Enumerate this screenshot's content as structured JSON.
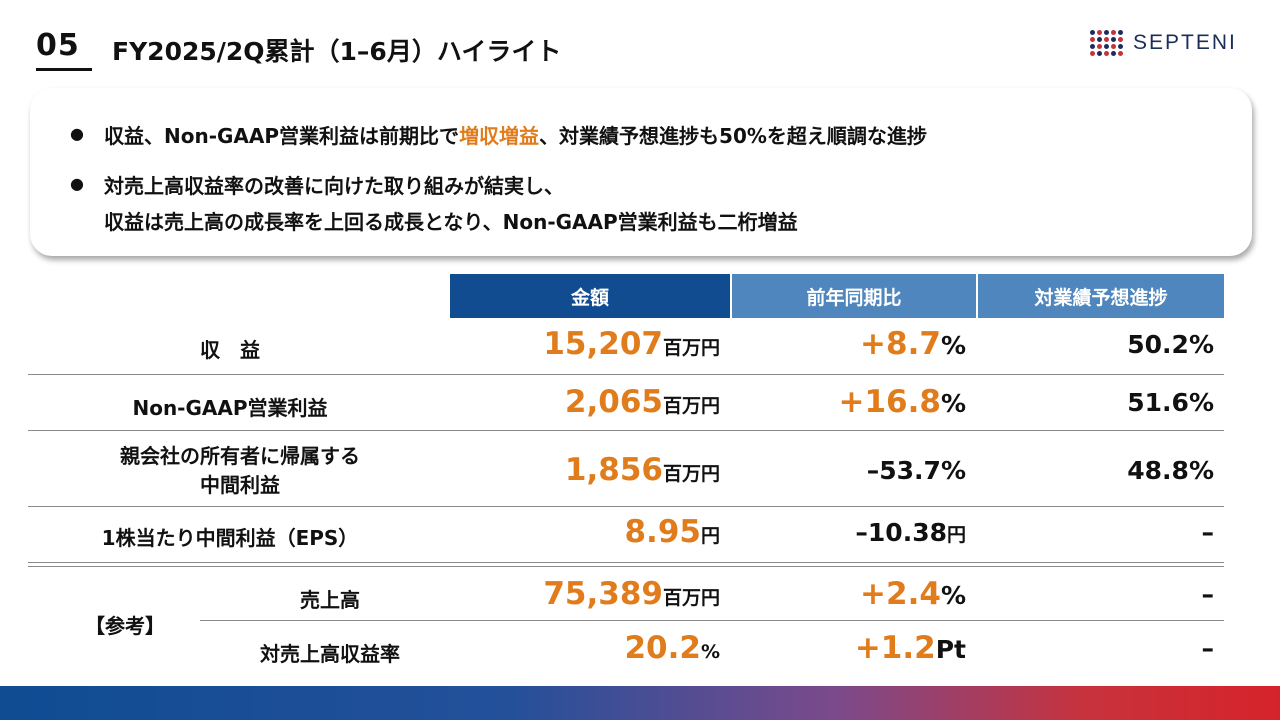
{
  "header": {
    "section_number": "05",
    "title": "FY2025/2Q累計（1–6月）ハイライト",
    "logo_text": "SEPTENI"
  },
  "summary": {
    "bullet1_pre": "収益、Non-GAAP営業利益は前期比で",
    "bullet1_accent": "増収増益",
    "bullet1_post": "、対業績予想進捗も50%を超え順調な進捗",
    "bullet2_line1": "対売上高収益率の改善に向けた取り組みが結実し、",
    "bullet2_line2": "収益は売上高の成長率を上回る成長となり、Non-GAAP営業利益も二桁増益",
    "bullet_symbol": "●"
  },
  "table": {
    "headers": {
      "amount": "金額",
      "yoy": "前年同期比",
      "progress": "対業績予想進捗"
    },
    "rows": [
      {
        "label": "収　益",
        "amount": "15,207",
        "amount_unit": "百万円",
        "yoy": "+8.7",
        "yoy_unit": "%",
        "progress": "50.2%"
      },
      {
        "label": "Non-GAAP営業利益",
        "amount": "2,065",
        "amount_unit": "百万円",
        "yoy": "+16.8",
        "yoy_unit": "%",
        "progress": "51.6%"
      },
      {
        "label_line1": "親会社の所有者に帰属する",
        "label_line2": "中間利益",
        "amount": "1,856",
        "amount_unit": "百万円",
        "yoy": "–53.7%",
        "progress": "48.8%"
      },
      {
        "label": "1株当たり中間利益（EPS）",
        "amount": "8.95",
        "amount_unit": "円",
        "yoy": "–10.38",
        "yoy_unit": "円",
        "progress": "–"
      }
    ],
    "reference_label": "【参考】",
    "reference_rows": [
      {
        "label": "売上高",
        "amount": "75,389",
        "amount_unit": "百万円",
        "yoy": "+2.4",
        "yoy_unit": "%",
        "progress": "–"
      },
      {
        "label": "対売上高収益率",
        "amount": "20.2",
        "amount_unit": "%",
        "yoy": "+1.2",
        "yoy_unit": "Pt",
        "progress": "–"
      }
    ]
  },
  "colors": {
    "accent": "#e07c1c",
    "header_dark_blue": "#114c91",
    "header_light_blue": "#4f86bd",
    "text": "#111111"
  }
}
